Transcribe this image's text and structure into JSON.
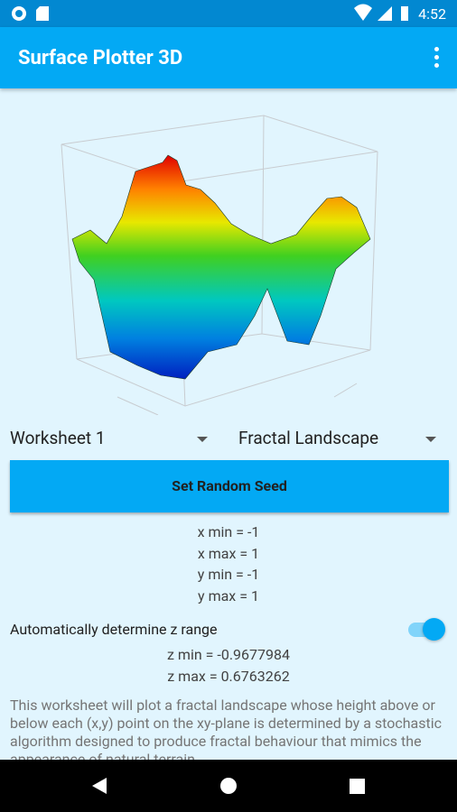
{
  "status_bar": {
    "time": "4:52"
  },
  "app_bar": {
    "title": "Surface Plotter 3D"
  },
  "selectors": {
    "worksheet": "Worksheet 1",
    "function": "Fractal Landscape"
  },
  "button": "Set Random Seed",
  "ranges": [
    "x min = -1",
    "x max = 1",
    "y min = -1",
    "y max = 1"
  ],
  "z_range": {
    "toggle_label": "Automatically determine z range",
    "z_min": "z min = -0.9677984",
    "z_max": "z max = 0.6763262"
  },
  "description": "This worksheet will plot a fractal landscape whose height above or below each (x,y) point on the xy-plane is determined by a stochastic algorithm designed to produce fractal behaviour that mimics the appearance of natural terrain."
}
